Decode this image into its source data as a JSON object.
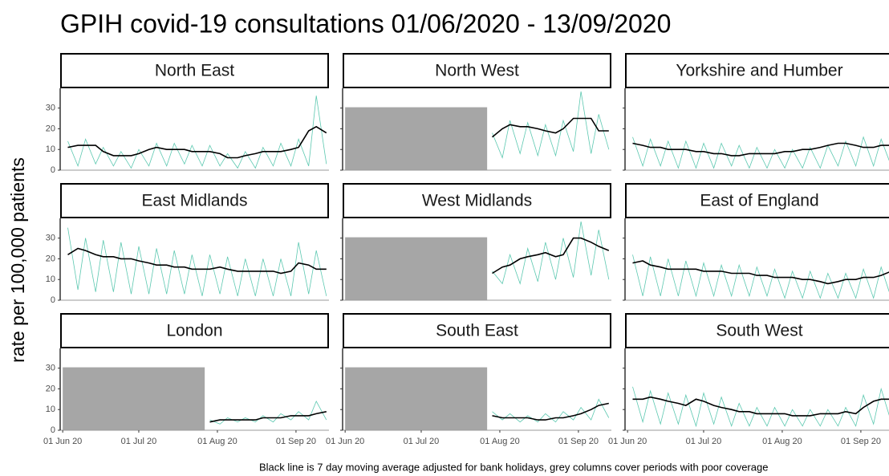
{
  "chart_data": {
    "type": "line",
    "title": "GPIH covid-19 consultations 01/06/2020 - 13/09/2020",
    "y_label": "rate per 100,000 patients",
    "caption": "Black line is 7 day moving average adjusted for bank holidays, grey columns cover periods with poor coverage",
    "x": [
      "2020-06-03",
      "2020-06-07",
      "2020-06-10",
      "2020-06-14",
      "2020-06-17",
      "2020-06-21",
      "2020-06-24",
      "2020-06-28",
      "2020-07-01",
      "2020-07-05",
      "2020-07-08",
      "2020-07-12",
      "2020-07-15",
      "2020-07-19",
      "2020-07-22",
      "2020-07-26",
      "2020-07-29",
      "2020-08-02",
      "2020-08-05",
      "2020-08-09",
      "2020-08-12",
      "2020-08-16",
      "2020-08-19",
      "2020-08-23",
      "2020-08-26",
      "2020-08-30",
      "2020-09-02",
      "2020-09-06",
      "2020-09-09",
      "2020-09-13"
    ],
    "xlim": [
      "2020-05-31",
      "2020-09-14"
    ],
    "xticks": [
      {
        "value": "2020-06-01",
        "label": "01 Jun 20"
      },
      {
        "value": "2020-07-01",
        "label": "01 Jul 20"
      },
      {
        "value": "2020-08-01",
        "label": "01 Aug 20"
      },
      {
        "value": "2020-09-01",
        "label": "01 Sep 20"
      }
    ],
    "ylim": [
      0,
      38
    ],
    "yticks": [
      0,
      10,
      20,
      30
    ],
    "poor_coverage_color": "#a6a6a6",
    "facets": [
      {
        "name": "North East",
        "poor_coverage": null,
        "series": [
          {
            "color": "#5cc8b0",
            "values": [
              14,
              2,
              15,
              3,
              11,
              2,
              9,
              1,
              10,
              2,
              13,
              2,
              13,
              3,
              12,
              2,
              12,
              2,
              8,
              1,
              9,
              1,
              11,
              2,
              13,
              2,
              15,
              2,
              36,
              3
            ]
          },
          {
            "color": "#000000",
            "values": [
              11,
              12,
              12,
              12,
              9,
              7,
              7,
              7,
              8,
              10,
              11,
              10,
              10,
              10,
              9,
              9,
              9,
              8,
              6,
              6,
              7,
              8,
              9,
              9,
              9,
              10,
              11,
              19,
              21,
              18
            ]
          }
        ]
      },
      {
        "name": "North West",
        "poor_coverage": [
          "2020-06-01",
          "2020-07-27"
        ],
        "series": [
          {
            "color": "#5cc8b0",
            "values": [
              null,
              null,
              null,
              null,
              null,
              null,
              null,
              null,
              null,
              null,
              null,
              null,
              null,
              null,
              null,
              null,
              18,
              6,
              24,
              8,
              23,
              7,
              22,
              7,
              24,
              9,
              38,
              8,
              27,
              10
            ]
          },
          {
            "color": "#000000",
            "values": [
              null,
              null,
              null,
              null,
              null,
              null,
              null,
              null,
              null,
              null,
              null,
              null,
              null,
              null,
              null,
              null,
              16,
              20,
              22,
              21,
              21,
              20,
              19,
              18,
              20,
              25,
              25,
              25,
              19,
              19
            ]
          }
        ]
      },
      {
        "name": "Yorkshire and Humber",
        "poor_coverage": null,
        "series": [
          {
            "color": "#5cc8b0",
            "values": [
              16,
              2,
              15,
              2,
              14,
              1,
              14,
              1,
              13,
              1,
              13,
              2,
              12,
              1,
              11,
              1,
              10,
              1,
              10,
              1,
              11,
              1,
              12,
              2,
              14,
              2,
              16,
              2,
              15,
              2
            ]
          },
          {
            "color": "#000000",
            "values": [
              13,
              12,
              11,
              11,
              10,
              10,
              10,
              9,
              9,
              8,
              8,
              7,
              7,
              8,
              8,
              8,
              8,
              9,
              9,
              10,
              10,
              11,
              12,
              13,
              13,
              12,
              11,
              11,
              12,
              12
            ]
          }
        ]
      },
      {
        "name": "East Midlands",
        "poor_coverage": null,
        "series": [
          {
            "color": "#5cc8b0",
            "values": [
              35,
              5,
              30,
              4,
              29,
              4,
              28,
              3,
              26,
              3,
              25,
              3,
              24,
              3,
              22,
              2,
              22,
              3,
              21,
              2,
              20,
              2,
              20,
              2,
              20,
              2,
              28,
              3,
              24,
              2
            ]
          },
          {
            "color": "#000000",
            "values": [
              22,
              25,
              24,
              22,
              21,
              21,
              20,
              20,
              19,
              18,
              17,
              17,
              16,
              16,
              15,
              15,
              15,
              16,
              15,
              14,
              14,
              14,
              14,
              14,
              13,
              14,
              18,
              17,
              15,
              15
            ]
          }
        ]
      },
      {
        "name": "West Midlands",
        "poor_coverage": [
          "2020-06-01",
          "2020-07-27"
        ],
        "series": [
          {
            "color": "#5cc8b0",
            "values": [
              null,
              null,
              null,
              null,
              null,
              null,
              null,
              null,
              null,
              null,
              null,
              null,
              null,
              null,
              null,
              null,
              14,
              8,
              22,
              8,
              25,
              9,
              28,
              10,
              30,
              11,
              38,
              12,
              34,
              10
            ]
          },
          {
            "color": "#000000",
            "values": [
              null,
              null,
              null,
              null,
              null,
              null,
              null,
              null,
              null,
              null,
              null,
              null,
              null,
              null,
              null,
              null,
              13,
              16,
              17,
              20,
              21,
              22,
              23,
              21,
              22,
              30,
              30,
              28,
              26,
              24
            ]
          }
        ]
      },
      {
        "name": "East of England",
        "poor_coverage": null,
        "series": [
          {
            "color": "#5cc8b0",
            "values": [
              22,
              2,
              21,
              2,
              20,
              2,
              19,
              2,
              18,
              2,
              17,
              2,
              17,
              2,
              16,
              2,
              15,
              1,
              14,
              1,
              14,
              1,
              13,
              1,
              13,
              1,
              15,
              1,
              16,
              1
            ]
          },
          {
            "color": "#000000",
            "values": [
              18,
              19,
              17,
              16,
              15,
              15,
              15,
              15,
              14,
              14,
              14,
              13,
              13,
              13,
              12,
              12,
              11,
              11,
              11,
              10,
              10,
              9,
              8,
              9,
              10,
              10,
              11,
              11,
              12,
              14
            ]
          }
        ]
      },
      {
        "name": "London",
        "poor_coverage": [
          "2020-06-01",
          "2020-07-27"
        ],
        "series": [
          {
            "color": "#5cc8b0",
            "values": [
              null,
              null,
              null,
              null,
              null,
              null,
              null,
              null,
              null,
              null,
              null,
              null,
              null,
              null,
              null,
              null,
              5,
              3,
              6,
              4,
              6,
              4,
              7,
              4,
              8,
              5,
              9,
              5,
              14,
              5
            ]
          },
          {
            "color": "#000000",
            "values": [
              null,
              null,
              null,
              null,
              null,
              null,
              null,
              null,
              null,
              null,
              null,
              null,
              null,
              null,
              null,
              null,
              4,
              5,
              5,
              5,
              5,
              5,
              6,
              6,
              6,
              7,
              7,
              7,
              8,
              9
            ]
          }
        ]
      },
      {
        "name": "South East",
        "poor_coverage": [
          "2020-06-01",
          "2020-07-27"
        ],
        "series": [
          {
            "color": "#5cc8b0",
            "values": [
              null,
              null,
              null,
              null,
              null,
              null,
              null,
              null,
              null,
              null,
              null,
              null,
              null,
              null,
              null,
              null,
              9,
              5,
              8,
              4,
              7,
              4,
              8,
              4,
              9,
              5,
              11,
              5,
              15,
              6
            ]
          },
          {
            "color": "#000000",
            "values": [
              null,
              null,
              null,
              null,
              null,
              null,
              null,
              null,
              null,
              null,
              null,
              null,
              null,
              null,
              null,
              null,
              7,
              6,
              6,
              6,
              6,
              5,
              5,
              6,
              6,
              7,
              8,
              10,
              12,
              13
            ]
          }
        ]
      },
      {
        "name": "South West",
        "poor_coverage": null,
        "series": [
          {
            "color": "#5cc8b0",
            "values": [
              21,
              4,
              19,
              3,
              18,
              3,
              17,
              2,
              18,
              3,
              16,
              2,
              13,
              2,
              11,
              2,
              11,
              2,
              10,
              2,
              10,
              2,
              10,
              2,
              11,
              2,
              17,
              3,
              20,
              4
            ]
          },
          {
            "color": "#000000",
            "values": [
              15,
              15,
              16,
              15,
              14,
              13,
              12,
              15,
              14,
              12,
              11,
              10,
              9,
              9,
              8,
              8,
              8,
              8,
              7,
              7,
              7,
              8,
              8,
              8,
              9,
              8,
              11,
              14,
              15,
              15
            ]
          }
        ]
      }
    ]
  }
}
